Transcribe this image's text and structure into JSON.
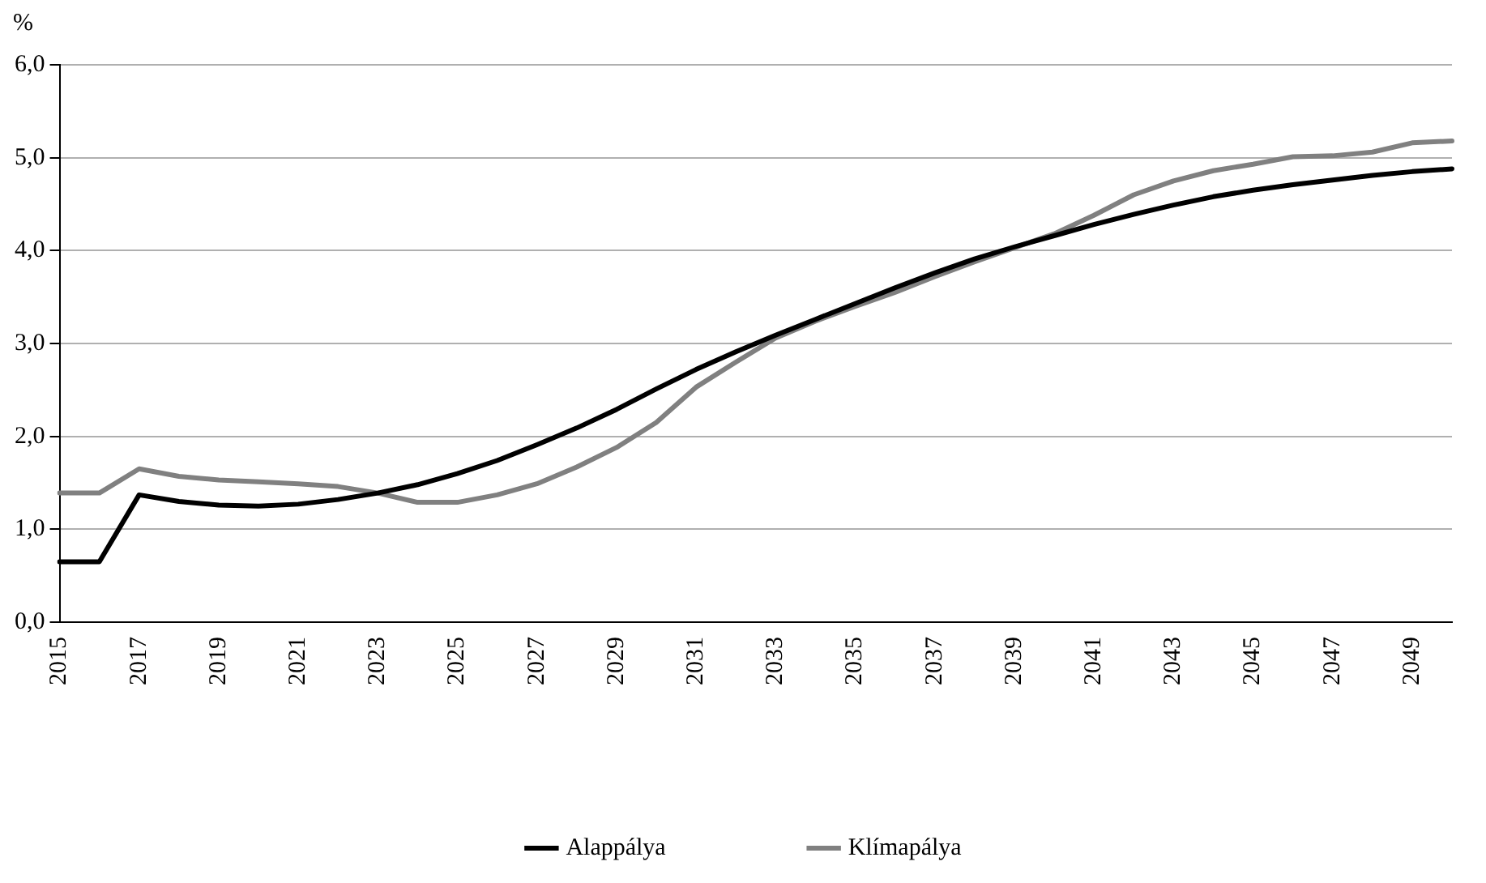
{
  "chart_data": {
    "type": "line",
    "ylabel": "%",
    "categories": [
      "2015",
      null,
      "2017",
      null,
      "2019",
      null,
      "2021",
      null,
      "2023",
      null,
      "2025",
      null,
      "2027",
      null,
      "2029",
      null,
      "2031",
      null,
      "2033",
      null,
      "2035",
      null,
      "2037",
      null,
      "2039",
      null,
      "2041",
      null,
      "2043",
      null,
      "2045",
      null,
      "2047",
      null,
      "2049",
      null
    ],
    "series": [
      {
        "name": "Alappálya",
        "color": "#000000",
        "values": [
          0.65,
          0.65,
          1.37,
          1.3,
          1.26,
          1.25,
          1.27,
          1.32,
          1.39,
          1.48,
          1.6,
          1.74,
          1.91,
          2.09,
          2.29,
          2.51,
          2.72,
          2.91,
          3.09,
          3.26,
          3.43,
          3.6,
          3.76,
          3.91,
          4.04,
          4.16,
          4.28,
          4.39,
          4.49,
          4.58,
          4.65,
          4.71,
          4.76,
          4.81,
          4.85,
          4.88
        ]
      },
      {
        "name": "Klímapálya",
        "color": "#808080",
        "values": [
          1.39,
          1.39,
          1.65,
          1.57,
          1.53,
          1.51,
          1.49,
          1.46,
          1.39,
          1.29,
          1.29,
          1.37,
          1.49,
          1.67,
          1.88,
          2.15,
          2.53,
          2.8,
          3.06,
          3.24,
          3.4,
          3.55,
          3.72,
          3.88,
          4.03,
          4.18,
          4.38,
          4.6,
          4.75,
          4.86,
          4.93,
          5.01,
          5.02,
          5.06,
          5.16,
          5.18
        ]
      }
    ],
    "ylim": [
      0,
      6
    ],
    "yticks": [
      {
        "value": 0,
        "label": "0,0"
      },
      {
        "value": 1,
        "label": "1,0"
      },
      {
        "value": 2,
        "label": "2,0"
      },
      {
        "value": 3,
        "label": "3,0"
      },
      {
        "value": 4,
        "label": "4,0"
      },
      {
        "value": 5,
        "label": "5,0"
      },
      {
        "value": 6,
        "label": "6,0"
      }
    ],
    "grid": "y",
    "legend": "bottom",
    "marker": "none",
    "line_style": "solid"
  }
}
